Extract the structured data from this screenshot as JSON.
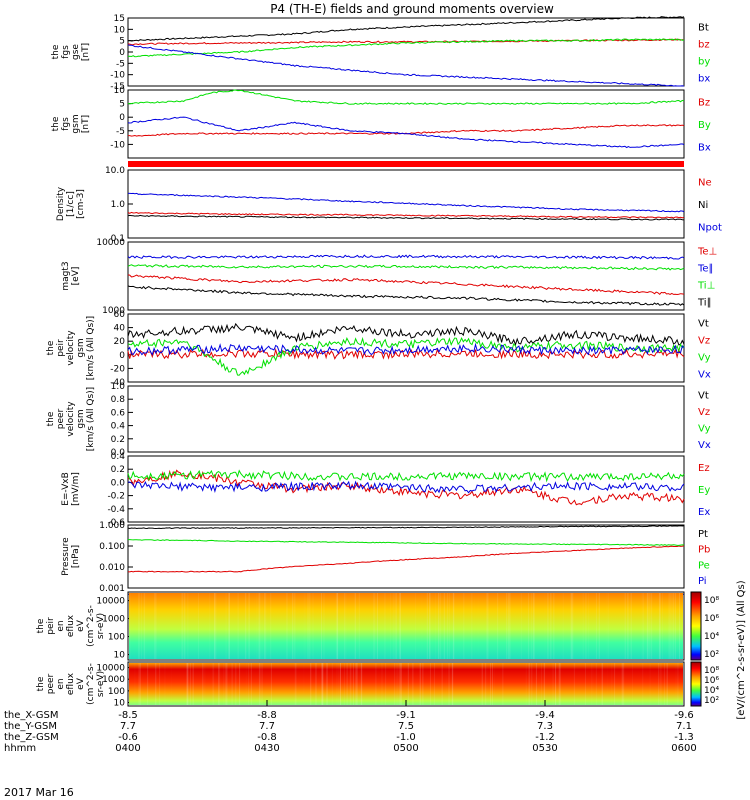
{
  "title": "P4 (TH-E) fields and ground moments overview",
  "date_label": "2017 Mar 16",
  "colors": {
    "black": "#000000",
    "red": "#e00000",
    "green": "#00e000",
    "blue": "#0000e0",
    "bar": "#ff0000"
  },
  "chart_data": [
    {
      "type": "line",
      "id": "fgs-gse",
      "ylabel": [
        "the",
        "fgs",
        "gse",
        "[nT]"
      ],
      "ylim": [
        -15,
        15
      ],
      "scale": "linear",
      "yticks": [
        "15",
        "10",
        "5",
        "0",
        "-5",
        "-10",
        "-15"
      ],
      "series": [
        {
          "name": "Bt",
          "color": "black",
          "x": [
            0,
            0.1,
            0.2,
            0.3,
            0.4,
            0.5,
            0.6,
            0.7,
            0.8,
            0.9,
            1
          ],
          "y": [
            5,
            6,
            7,
            8,
            10,
            11,
            12,
            13,
            14,
            15,
            15.5
          ]
        },
        {
          "name": "bz",
          "color": "red",
          "x": [
            0,
            0.1,
            0.2,
            0.3,
            0.4,
            0.5,
            0.6,
            0.7,
            0.8,
            0.9,
            1
          ],
          "y": [
            3.5,
            3.8,
            4,
            4.2,
            4.5,
            4.5,
            4.6,
            4.8,
            5,
            5.2,
            5.5
          ]
        },
        {
          "name": "by",
          "color": "green",
          "x": [
            0,
            0.1,
            0.2,
            0.3,
            0.4,
            0.5,
            0.6,
            0.7,
            0.8,
            0.9,
            1
          ],
          "y": [
            -2,
            -1,
            0,
            2,
            3,
            4,
            4.5,
            5,
            5,
            5.5,
            5.5
          ]
        },
        {
          "name": "bx",
          "color": "blue",
          "x": [
            0,
            0.1,
            0.2,
            0.3,
            0.4,
            0.5,
            0.6,
            0.7,
            0.8,
            0.9,
            1
          ],
          "y": [
            3,
            0,
            -3,
            -6,
            -8,
            -10,
            -11,
            -12,
            -13,
            -14,
            -15
          ]
        }
      ]
    },
    {
      "type": "line",
      "id": "fgs-gsm",
      "ylabel": [
        "the",
        "fgs",
        "gsm",
        "[nT]"
      ],
      "ylim": [
        -15,
        10
      ],
      "scale": "linear",
      "yticks": [
        "10",
        "5",
        "0",
        "-5",
        "-10"
      ],
      "series": [
        {
          "name": "Bz",
          "color": "red",
          "x": [
            0,
            0.1,
            0.2,
            0.3,
            0.4,
            0.5,
            0.6,
            0.7,
            0.8,
            0.9,
            1
          ],
          "y": [
            -7,
            -6,
            -6,
            -6,
            -6,
            -6,
            -5,
            -5,
            -4,
            -3,
            -3
          ]
        },
        {
          "name": "By",
          "color": "green",
          "x": [
            0,
            0.1,
            0.15,
            0.2,
            0.3,
            0.4,
            0.5,
            0.6,
            0.7,
            0.8,
            0.9,
            1
          ],
          "y": [
            5,
            6,
            9,
            10,
            6,
            5,
            5,
            5,
            5,
            5,
            5,
            6
          ]
        },
        {
          "name": "Bx",
          "color": "blue",
          "x": [
            0,
            0.1,
            0.2,
            0.3,
            0.4,
            0.5,
            0.6,
            0.7,
            0.8,
            0.9,
            1
          ],
          "y": [
            -2,
            0,
            -5,
            -2,
            -5,
            -6,
            -8,
            -9,
            -10,
            -11,
            -10
          ]
        }
      ]
    },
    {
      "type": "line",
      "id": "density",
      "ylabel": [
        "Density",
        "[1/cc]",
        "[cm-3]"
      ],
      "ylim": [
        0.1,
        10
      ],
      "scale": "log",
      "yticks": [
        "10.0",
        "1.0",
        "0.1"
      ],
      "series": [
        {
          "name": "Ne",
          "color": "red",
          "x": [
            0,
            0.2,
            0.4,
            0.6,
            0.8,
            1
          ],
          "y": [
            0.55,
            0.5,
            0.48,
            0.45,
            0.42,
            0.4
          ]
        },
        {
          "name": "Ni",
          "color": "black",
          "x": [
            0,
            0.2,
            0.4,
            0.6,
            0.8,
            1
          ],
          "y": [
            0.45,
            0.42,
            0.4,
            0.38,
            0.36,
            0.35
          ]
        },
        {
          "name": "Npot",
          "color": "blue",
          "x": [
            0,
            0.2,
            0.4,
            0.6,
            0.8,
            1
          ],
          "y": [
            2,
            1.6,
            1.2,
            0.9,
            0.7,
            0.6
          ]
        }
      ]
    },
    {
      "type": "line",
      "id": "temperature",
      "ylabel": [
        "magt3",
        "[eV]"
      ],
      "ylim": [
        1000,
        10000
      ],
      "scale": "log",
      "yticks": [
        "10000",
        "1000"
      ],
      "series": [
        {
          "name": "Te⊥",
          "color": "red",
          "x": [
            0,
            0.2,
            0.4,
            0.6,
            0.8,
            1
          ],
          "y": [
            3200,
            2600,
            2800,
            2400,
            2000,
            1700
          ]
        },
        {
          "name": "Te∥",
          "color": "blue",
          "x": [
            0,
            0.2,
            0.4,
            0.6,
            0.8,
            1
          ],
          "y": [
            6000,
            6000,
            6200,
            6100,
            6000,
            5800
          ]
        },
        {
          "name": "Ti⊥",
          "color": "green",
          "x": [
            0,
            0.2,
            0.4,
            0.6,
            0.8,
            1
          ],
          "y": [
            4500,
            4300,
            4400,
            4300,
            4200,
            4000
          ]
        },
        {
          "name": "Ti∥",
          "color": "black",
          "x": [
            0,
            0.2,
            0.3,
            0.4,
            0.6,
            0.8,
            1
          ],
          "y": [
            2200,
            1800,
            1700,
            1600,
            1500,
            1300,
            1200
          ]
        }
      ]
    },
    {
      "type": "line",
      "id": "peir-velocity",
      "ylabel": [
        "the",
        "peir",
        "velocity",
        "gsm",
        "[km/s (All Qs)]"
      ],
      "ylim": [
        -40,
        60
      ],
      "scale": "linear",
      "yticks": [
        "60",
        "40",
        "20",
        "0",
        "-20",
        "-40"
      ],
      "series": [
        {
          "name": "Vt",
          "color": "black",
          "x": [
            0,
            0.1,
            0.2,
            0.3,
            0.4,
            0.5,
            0.6,
            0.7,
            0.8,
            0.9,
            1
          ],
          "y": [
            30,
            35,
            40,
            25,
            40,
            30,
            35,
            20,
            30,
            25,
            20
          ]
        },
        {
          "name": "Vz",
          "color": "red",
          "x": [
            0,
            0.2,
            0.4,
            0.6,
            0.8,
            1
          ],
          "y": [
            0,
            2,
            0,
            2,
            0,
            2
          ]
        },
        {
          "name": "Vy",
          "color": "green",
          "x": [
            0,
            0.1,
            0.2,
            0.3,
            0.4,
            0.5,
            0.6,
            0.7,
            0.8,
            0.9,
            1
          ],
          "y": [
            15,
            20,
            -30,
            10,
            20,
            15,
            20,
            10,
            15,
            10,
            10
          ]
        },
        {
          "name": "Vx",
          "color": "blue",
          "x": [
            0,
            0.2,
            0.4,
            0.6,
            0.8,
            1
          ],
          "y": [
            5,
            10,
            5,
            10,
            5,
            8
          ]
        }
      ]
    },
    {
      "type": "line",
      "id": "peer-velocity",
      "ylabel": [
        "the",
        "peer",
        "velocity",
        "gsm",
        "[km/s (All Qs)]"
      ],
      "ylim": [
        0,
        1
      ],
      "scale": "linear",
      "yticks": [
        "1.0",
        "0.8",
        "0.6",
        "0.4",
        "0.2",
        "0.0"
      ],
      "legend": [
        "Vt",
        "Vz",
        "Vy",
        "Vx"
      ],
      "legend_colors": [
        "black",
        "red",
        "green",
        "blue"
      ],
      "series": []
    },
    {
      "type": "line",
      "id": "efield",
      "ylabel": [
        "E=-VxB",
        "[mV/m]"
      ],
      "ylim": [
        -0.6,
        0.4
      ],
      "scale": "linear",
      "yticks": [
        "0.4",
        "0.2",
        "0.0",
        "-0.2",
        "-0.4",
        "-0.6"
      ],
      "series": [
        {
          "name": "Ez",
          "color": "red",
          "x": [
            0,
            0.1,
            0.2,
            0.3,
            0.4,
            0.5,
            0.6,
            0.7,
            0.8,
            0.9,
            1
          ],
          "y": [
            0,
            0.15,
            0,
            -0.1,
            -0.05,
            -0.15,
            -0.2,
            -0.1,
            -0.3,
            -0.2,
            -0.25
          ]
        },
        {
          "name": "Ey",
          "color": "green",
          "x": [
            0,
            0.2,
            0.4,
            0.6,
            0.8,
            1
          ],
          "y": [
            0.1,
            0.12,
            0.08,
            0.1,
            0.08,
            0.1
          ]
        },
        {
          "name": "Ex",
          "color": "blue",
          "x": [
            0,
            0.2,
            0.4,
            0.6,
            0.8,
            1
          ],
          "y": [
            -0.05,
            -0.08,
            -0.05,
            -0.1,
            -0.05,
            -0.08
          ]
        }
      ]
    },
    {
      "type": "line",
      "id": "pressure",
      "ylabel": [
        "Pressure",
        "[nPa]"
      ],
      "ylim": [
        0.001,
        1
      ],
      "scale": "log",
      "yticks": [
        "1.000",
        "0.100",
        "0.010",
        "0.001"
      ],
      "series": [
        {
          "name": "Pt",
          "color": "black",
          "x": [
            0,
            0.5,
            1
          ],
          "y": [
            0.7,
            0.75,
            0.9
          ]
        },
        {
          "name": "Pb",
          "color": "red",
          "x": [
            0,
            0.2,
            0.4,
            0.6,
            0.8,
            1
          ],
          "y": [
            0.006,
            0.006,
            0.015,
            0.03,
            0.06,
            0.1
          ]
        },
        {
          "name": "Pe",
          "color": "green",
          "x": [
            0,
            0.2,
            0.4,
            0.6,
            0.8,
            1
          ],
          "y": [
            0.2,
            0.17,
            0.15,
            0.13,
            0.12,
            0.11
          ]
        },
        {
          "name": "Pi",
          "color": "blue",
          "x": [
            0,
            1
          ],
          "y": [
            0,
            0
          ]
        }
      ]
    },
    {
      "type": "heatmap",
      "id": "peir-spectrogram",
      "ylabel": [
        "the",
        "peir",
        "en",
        "eflux",
        "eV",
        "(cm^2-s-",
        "sr-eV)"
      ],
      "ylim": [
        5,
        30000
      ],
      "scale": "log",
      "yticks": [
        "10000",
        "1000",
        "100",
        "10"
      ],
      "colorbar_ticks": [
        "10⁸",
        "10⁶",
        "10⁴",
        "10²"
      ],
      "colorbar_label": "[eV/(cm^2-s-sr-eV)] (All Qs)"
    },
    {
      "type": "heatmap",
      "id": "peer-spectrogram",
      "ylabel": [
        "the",
        "peer",
        "en",
        "eflux",
        "eV",
        "(cm^2-s-",
        "sr-eV)"
      ],
      "ylim": [
        5,
        30000
      ],
      "scale": "log",
      "yticks": [
        "10000",
        "1000",
        "100",
        "10"
      ],
      "colorbar_ticks": [
        "10⁸",
        "10⁶",
        "10⁴",
        "10²"
      ]
    }
  ],
  "xaxis": {
    "row_labels": [
      "the_X-GSM",
      "the_Y-GSM",
      "the_Z-GSM",
      "hhmm"
    ],
    "ticks": [
      {
        "x": "-8.5",
        "y": "7.7",
        "z": "-0.6",
        "t": "0400"
      },
      {
        "x": "-8.8",
        "y": "7.7",
        "z": "-0.8",
        "t": "0430"
      },
      {
        "x": "-9.1",
        "y": "7.5",
        "z": "-1.0",
        "t": "0500"
      },
      {
        "x": "-9.4",
        "y": "7.3",
        "z": "-1.2",
        "t": "0530"
      },
      {
        "x": "-9.6",
        "y": "7.1",
        "z": "-1.3",
        "t": "0600"
      }
    ]
  }
}
